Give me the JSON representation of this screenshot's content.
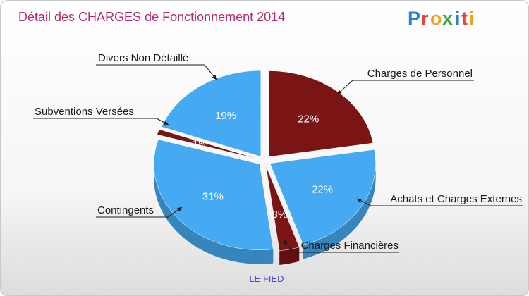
{
  "header": {
    "title": "Détail des CHARGES de Fonctionnement 2014",
    "logo_text": "Proxiti"
  },
  "chart_data": {
    "type": "pie",
    "title": "Détail des CHARGES de Fonctionnement 2014",
    "category_label": "LE FIED",
    "slices": [
      {
        "label": "Charges de Personnel",
        "value": 22,
        "value_label": "22%",
        "color": "#7b1414"
      },
      {
        "label": "Achats et Charges Externes",
        "value": 22,
        "value_label": "22%",
        "color": "#45aaf2"
      },
      {
        "label": "Charges Financières",
        "value": 3,
        "value_label": "3%",
        "color": "#7b1414"
      },
      {
        "label": "Contingents",
        "value": 31,
        "value_label": "31%",
        "color": "#45aaf2"
      },
      {
        "label": "Subventions Versées",
        "value": 1,
        "value_label": "1%",
        "color": "#7b1414"
      },
      {
        "label": "Divers Non Détaillé",
        "value": 19,
        "value_label": "19%",
        "color": "#45aaf2"
      }
    ]
  }
}
